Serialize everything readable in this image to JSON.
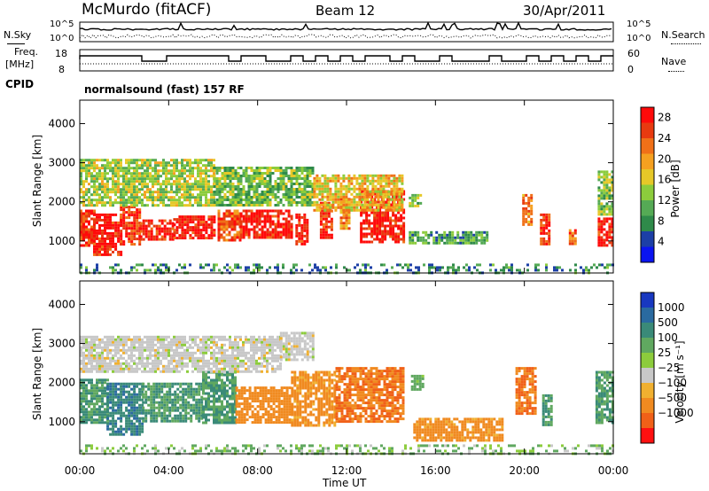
{
  "header": {
    "site": "McMurdo (fitACF)",
    "beam": "Beam 12",
    "date": "30/Apr/2011"
  },
  "top_panels": {
    "nsky_label": "N.Sky",
    "nsky_ticks": [
      "10^5",
      "10^0"
    ],
    "nsearch_label": "N.Search",
    "nsearch_ticks": [
      "10^5",
      "10^0"
    ],
    "freq_label_1": "Freq.",
    "freq_label_2": "[MHz]",
    "freq_ticks": [
      "18",
      "8"
    ],
    "nave_label": "Nave",
    "nave_ticks": [
      "60",
      "0"
    ],
    "cpid_label": "CPID",
    "cpid_value": "normalsound (fast) 157 RF"
  },
  "colors": {
    "power": [
      "#0a14f0",
      "#1c3fa6",
      "#2f8a4a",
      "#55aa55",
      "#8ccc3c",
      "#e6c828",
      "#f5a020",
      "#f07018",
      "#e83a10",
      "#ff0a0a"
    ],
    "velocity": [
      "#1838c0",
      "#2a6aa0",
      "#3a8a78",
      "#60a860",
      "#8ccc3c",
      "#c8c8c8",
      "#f0b030",
      "#f08a20",
      "#f06018",
      "#ff1010"
    ]
  },
  "chart_data": [
    {
      "type": "heatmap",
      "name": "power",
      "ylabel": "Slant Range [km]",
      "xlabel": "",
      "x_ticks": [
        "00:00",
        "04:00",
        "08:00",
        "12:00",
        "16:00",
        "20:00",
        "00:00"
      ],
      "y_ticks": [
        1000,
        2000,
        3000,
        4000
      ],
      "xlim": [
        0,
        24
      ],
      "ylim": [
        180,
        4600
      ],
      "colorbar_label": "Power [dB]",
      "colorbar_ticks": [
        4,
        8,
        12,
        16,
        20,
        24,
        28
      ],
      "colorbar_range": [
        0,
        30
      ],
      "regions": [
        {
          "t": [
            0.0,
            0.6
          ],
          "r": [
            900,
            1800
          ],
          "v": 26
        },
        {
          "t": [
            0.6,
            1.8
          ],
          "r": [
            650,
            1700
          ],
          "v": 28
        },
        {
          "t": [
            1.8,
            2.7
          ],
          "r": [
            900,
            1900
          ],
          "v": 26
        },
        {
          "t": [
            2.7,
            4.2
          ],
          "r": [
            1050,
            1550
          ],
          "v": 28
        },
        {
          "t": [
            4.2,
            6.0
          ],
          "r": [
            1100,
            1650
          ],
          "v": 28
        },
        {
          "t": [
            6.2,
            7.2
          ],
          "r": [
            1000,
            1800
          ],
          "v": 24
        },
        {
          "t": [
            7.2,
            9.5
          ],
          "r": [
            1100,
            1800
          ],
          "v": 28
        },
        {
          "t": [
            9.7,
            10.2
          ],
          "r": [
            900,
            1700
          ],
          "v": 28
        },
        {
          "t": [
            10.8,
            11.3
          ],
          "r": [
            1100,
            2000
          ],
          "v": 26
        },
        {
          "t": [
            11.7,
            12.1
          ],
          "r": [
            1300,
            2100
          ],
          "v": 22
        },
        {
          "t": [
            12.6,
            14.6
          ],
          "r": [
            1000,
            2300
          ],
          "v": 28
        },
        {
          "t": [
            0.0,
            6.0
          ],
          "r": [
            1900,
            3100
          ],
          "v": 14
        },
        {
          "t": [
            6.0,
            10.5
          ],
          "r": [
            1900,
            2900
          ],
          "v": 12
        },
        {
          "t": [
            10.5,
            14.5
          ],
          "r": [
            1800,
            2700
          ],
          "v": 18
        },
        {
          "t": [
            14.8,
            18.3
          ],
          "r": [
            950,
            1250
          ],
          "v": 10
        },
        {
          "t": [
            14.8,
            15.3
          ],
          "r": [
            1900,
            2200
          ],
          "v": 12
        },
        {
          "t": [
            19.9,
            20.3
          ],
          "r": [
            1400,
            2200
          ],
          "v": 22
        },
        {
          "t": [
            20.7,
            21.1
          ],
          "r": [
            900,
            1700
          ],
          "v": 26
        },
        {
          "t": [
            22.0,
            22.3
          ],
          "r": [
            900,
            1300
          ],
          "v": 24
        },
        {
          "t": [
            23.3,
            24.0
          ],
          "r": [
            900,
            1600
          ],
          "v": 28
        },
        {
          "t": [
            23.3,
            24.0
          ],
          "r": [
            1700,
            2800
          ],
          "v": 12
        },
        {
          "t": [
            0.0,
            24.0
          ],
          "r": [
            190,
            420
          ],
          "v": 8
        }
      ]
    },
    {
      "type": "heatmap",
      "name": "velocity",
      "ylabel": "Slant Range [km]",
      "xlabel": "Time UT",
      "x_ticks": [
        "00:00",
        "04:00",
        "08:00",
        "12:00",
        "16:00",
        "20:00",
        "00:00"
      ],
      "y_ticks": [
        1000,
        2000,
        3000,
        4000
      ],
      "xlim": [
        0,
        24
      ],
      "ylim": [
        180,
        4600
      ],
      "colorbar_label": "Velocity [m s⁻¹]",
      "colorbar_ticks": [
        "1000",
        "500",
        "100",
        "25",
        "−25",
        "−100",
        "−500",
        "−1000"
      ],
      "regions": [
        {
          "t": [
            0.0,
            1.2
          ],
          "r": [
            1000,
            2100
          ],
          "v": 100
        },
        {
          "t": [
            1.2,
            2.8
          ],
          "r": [
            700,
            2000
          ],
          "v": 250
        },
        {
          "t": [
            2.8,
            5.5
          ],
          "r": [
            1000,
            2000
          ],
          "v": 100
        },
        {
          "t": [
            5.5,
            7.0
          ],
          "r": [
            1000,
            2300
          ],
          "v": 100
        },
        {
          "t": [
            7.0,
            9.5
          ],
          "r": [
            1000,
            1900
          ],
          "v": -200
        },
        {
          "t": [
            9.5,
            11.5
          ],
          "r": [
            900,
            2300
          ],
          "v": -150
        },
        {
          "t": [
            11.5,
            14.5
          ],
          "r": [
            1000,
            2400
          ],
          "v": -300
        },
        {
          "t": [
            0.0,
            9.0
          ],
          "r": [
            2300,
            3200
          ],
          "v": 0
        },
        {
          "t": [
            9.0,
            10.5
          ],
          "r": [
            2600,
            3300
          ],
          "v": 0
        },
        {
          "t": [
            15.0,
            19.0
          ],
          "r": [
            500,
            1100
          ],
          "v": -150
        },
        {
          "t": [
            14.9,
            15.4
          ],
          "r": [
            1800,
            2200
          ],
          "v": 60
        },
        {
          "t": [
            19.6,
            20.5
          ],
          "r": [
            1200,
            2400
          ],
          "v": -300
        },
        {
          "t": [
            20.8,
            21.2
          ],
          "r": [
            900,
            1700
          ],
          "v": 100
        },
        {
          "t": [
            23.2,
            24.0
          ],
          "r": [
            1000,
            2300
          ],
          "v": 100
        },
        {
          "t": [
            0.0,
            24.0
          ],
          "r": [
            190,
            420
          ],
          "v": 40
        }
      ]
    }
  ]
}
